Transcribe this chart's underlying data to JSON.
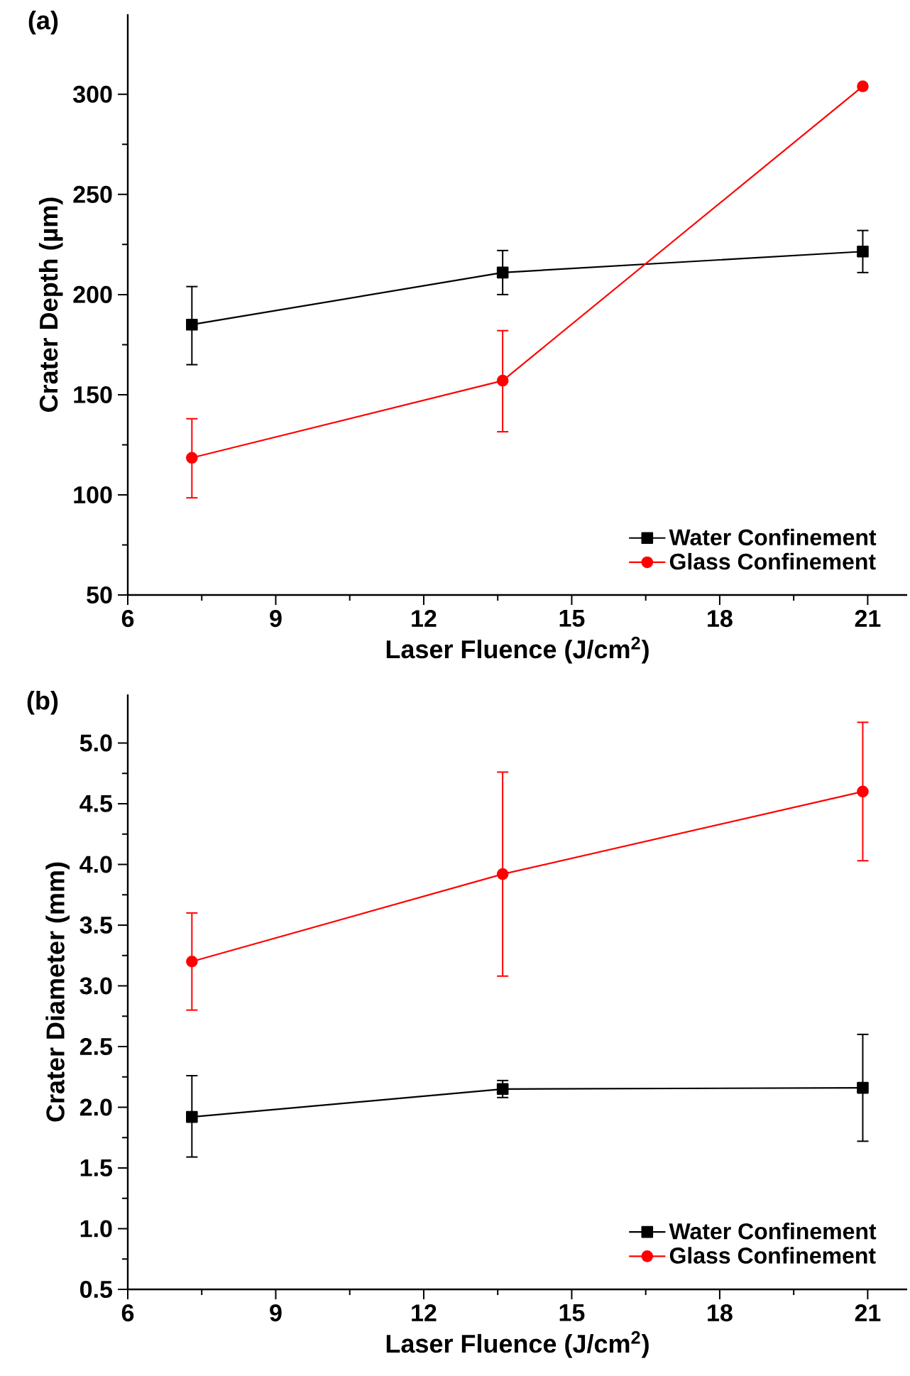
{
  "chart_data": [
    {
      "type": "line",
      "title": "(a)",
      "xlabel": "Laser Fluence (J/cm$^{2}$)",
      "ylabel": "Crater Depth (µm)",
      "x": [
        7.3,
        13.6,
        20.9
      ],
      "xlim": [
        6,
        21.8
      ],
      "xticks": [
        6,
        9,
        12,
        15,
        18,
        21
      ],
      "ylim": [
        50,
        340
      ],
      "yticks": [
        50,
        100,
        150,
        200,
        250,
        300
      ],
      "legend": "bottom right",
      "series": [
        {
          "name": "Water Confinement",
          "color": "#000000",
          "marker": "square",
          "values": [
            185,
            211,
            221.5
          ],
          "errors": [
            [
              165,
              204
            ],
            [
              200,
              222
            ],
            [
              211,
              232
            ]
          ]
        },
        {
          "name": "Glass Confinement",
          "color": "#ff0000",
          "marker": "circle",
          "values": [
            118.5,
            157,
            304
          ],
          "errors": [
            [
              98.5,
              138
            ],
            [
              131.5,
              182
            ],
            null
          ]
        }
      ]
    },
    {
      "type": "line",
      "title": "(b)",
      "xlabel": "Laser Fluence (J/cm$^{2}$)",
      "ylabel": "Crater Diameter (mm)",
      "x": [
        7.3,
        13.6,
        20.9
      ],
      "xlim": [
        6,
        21.8
      ],
      "xticks": [
        6,
        9,
        12,
        15,
        18,
        21
      ],
      "ylim": [
        0.5,
        5.4
      ],
      "yticks": [
        {
          "value": 0.5,
          "label": "0.5"
        },
        {
          "value": 1,
          "label": "1.0"
        },
        {
          "value": 1.5,
          "label": "1.5"
        },
        {
          "value": 2,
          "label": "2.0"
        },
        {
          "value": 2.5,
          "label": "2.5"
        },
        {
          "value": 3,
          "label": "3.0"
        },
        {
          "value": 3.5,
          "label": "3.5"
        },
        {
          "value": 4,
          "label": "4.0"
        },
        {
          "value": 4.5,
          "label": "4.5"
        },
        {
          "value": 5,
          "label": "5.0"
        }
      ],
      "legend": "bottom right",
      "series": [
        {
          "name": "Water Confinement",
          "color": "#000000",
          "marker": "square",
          "values": [
            1.92,
            2.15,
            2.16
          ],
          "errors": [
            [
              1.59,
              2.26
            ],
            [
              2.08,
              2.22
            ],
            [
              1.72,
              2.6
            ]
          ]
        },
        {
          "name": "Glass Confinement",
          "color": "#ff0000",
          "marker": "circle",
          "values": [
            3.2,
            3.92,
            4.6
          ],
          "errors": [
            [
              2.8,
              3.6
            ],
            [
              3.08,
              4.76
            ],
            [
              4.03,
              5.17
            ]
          ]
        }
      ]
    }
  ]
}
